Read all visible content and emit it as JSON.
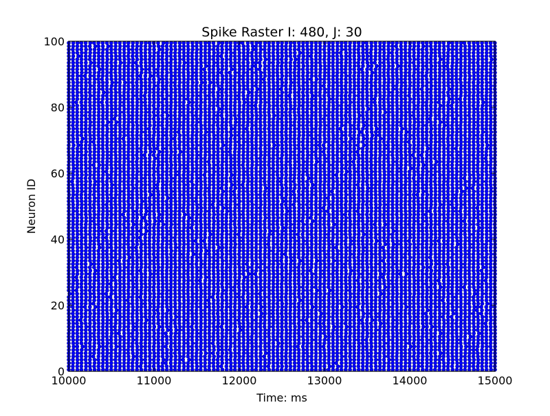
{
  "chart_data": {
    "type": "scatter",
    "title": "Spike Raster I: 480, J: 30",
    "xlabel": "Time: ms",
    "ylabel": "Neuron ID",
    "xlim": [
      10000,
      15000
    ],
    "ylim": [
      0,
      100
    ],
    "xticks": [
      10000,
      11000,
      12000,
      13000,
      14000,
      15000
    ],
    "yticks": [
      0,
      20,
      40,
      60,
      80,
      100
    ],
    "xtick_labels": [
      "10000",
      "11000",
      "12000",
      "13000",
      "14000",
      "15000"
    ],
    "ytick_labels": [
      "0",
      "20",
      "40",
      "60",
      "80",
      "100"
    ],
    "grid": false,
    "legend": "none",
    "marker": "circle",
    "marker_color": "#0000ff",
    "series": [
      {
        "neuron_ids": "0-99",
        "burst_period_ms": 50,
        "first_burst_ms": 10000,
        "last_burst_ms": 15000,
        "jitter_ms": 6
      }
    ]
  }
}
